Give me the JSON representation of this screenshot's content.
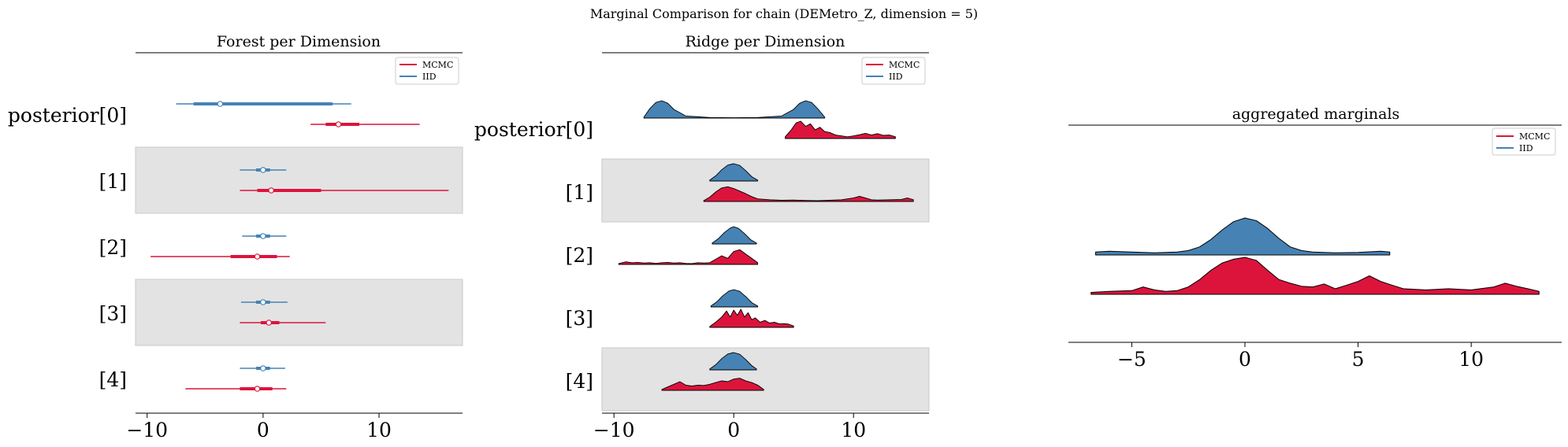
{
  "figure": {
    "suptitle": "Marginal Comparison for chain (DEMetro_Z, dimension = 5)"
  },
  "colors": {
    "mcmc": "#dc143c",
    "iid": "#4682b4",
    "band": "#e3e3e3"
  },
  "legend": {
    "mcmc": "MCMC",
    "iid": "IID"
  },
  "chart_data": [
    {
      "type": "forest",
      "title": "Forest per Dimension",
      "row_labels": [
        "posterior[0]",
        "[1]",
        "[2]",
        "[3]",
        "[4]"
      ],
      "xticks": [
        -10,
        0,
        10
      ],
      "xlim": [
        -11,
        17.2
      ],
      "legend_position": "upper right",
      "series": [
        {
          "name": "IID",
          "rows": [
            {
              "hdi": [
                -7.5,
                7.6
              ],
              "iqr": [
                -6.0,
                6.0
              ],
              "center": -3.7
            },
            {
              "hdi": [
                -2.0,
                2.0
              ],
              "iqr": [
                -0.6,
                0.6
              ],
              "center": 0.0
            },
            {
              "hdi": [
                -1.8,
                2.0
              ],
              "iqr": [
                -0.6,
                0.6
              ],
              "center": 0.0
            },
            {
              "hdi": [
                -1.9,
                2.1
              ],
              "iqr": [
                -0.6,
                0.6
              ],
              "center": 0.0
            },
            {
              "hdi": [
                -2.0,
                1.9
              ],
              "iqr": [
                -0.6,
                0.6
              ],
              "center": 0.0
            }
          ]
        },
        {
          "name": "MCMC",
          "rows": [
            {
              "hdi": [
                4.1,
                13.5
              ],
              "iqr": [
                5.4,
                8.3
              ],
              "center": 6.5
            },
            {
              "hdi": [
                -2.0,
                16.0
              ],
              "iqr": [
                -0.5,
                5.0
              ],
              "center": 0.7
            },
            {
              "hdi": [
                -9.7,
                2.3
              ],
              "iqr": [
                -2.8,
                1.2
              ],
              "center": -0.5
            },
            {
              "hdi": [
                -2.0,
                5.4
              ],
              "iqr": [
                -0.2,
                1.4
              ],
              "center": 0.5
            },
            {
              "hdi": [
                -6.7,
                2.0
              ],
              "iqr": [
                -2.0,
                0.8
              ],
              "center": -0.5
            }
          ]
        }
      ]
    },
    {
      "type": "ridge",
      "title": "Ridge per Dimension",
      "row_labels": [
        "posterior[0]",
        "[1]",
        "[2]",
        "[3]",
        "[4]"
      ],
      "xticks": [
        -10,
        0,
        10
      ],
      "xlim": [
        -11,
        16.3
      ],
      "legend_position": "upper right",
      "series": [
        {
          "name": "IID",
          "rows": [
            {
              "x": [
                -7.5,
                -7.0,
                -6.5,
                -6.0,
                -5.5,
                -5.0,
                -4.0,
                -2.0,
                0.0,
                2.0,
                4.0,
                5.0,
                5.5,
                6.0,
                6.5,
                7.0,
                7.6
              ],
              "y": [
                0.05,
                0.55,
                0.9,
                1.0,
                0.85,
                0.5,
                0.12,
                0.03,
                0.02,
                0.03,
                0.12,
                0.5,
                0.85,
                1.0,
                0.9,
                0.55,
                0.05
              ]
            },
            {
              "x": [
                -2.0,
                -1.5,
                -1.0,
                -0.5,
                0.0,
                0.5,
                1.0,
                1.5,
                2.0
              ],
              "y": [
                0.05,
                0.3,
                0.65,
                0.92,
                1.0,
                0.9,
                0.6,
                0.25,
                0.05
              ]
            },
            {
              "x": [
                -1.8,
                -1.3,
                -0.8,
                -0.3,
                0.0,
                0.4,
                0.9,
                1.4,
                1.9
              ],
              "y": [
                0.05,
                0.3,
                0.65,
                0.92,
                1.0,
                0.9,
                0.6,
                0.25,
                0.05
              ]
            },
            {
              "x": [
                -1.9,
                -1.4,
                -0.9,
                -0.4,
                0.0,
                0.5,
                1.0,
                1.5,
                2.0
              ],
              "y": [
                0.05,
                0.3,
                0.65,
                0.92,
                1.0,
                0.9,
                0.6,
                0.25,
                0.05
              ]
            },
            {
              "x": [
                -2.0,
                -1.5,
                -1.0,
                -0.5,
                0.0,
                0.5,
                1.0,
                1.5,
                1.9
              ],
              "y": [
                0.05,
                0.3,
                0.65,
                0.92,
                1.0,
                0.9,
                0.6,
                0.25,
                0.05
              ]
            }
          ]
        },
        {
          "name": "MCMC",
          "rows": [
            {
              "x": [
                4.3,
                4.8,
                5.2,
                5.6,
                6.0,
                6.4,
                6.8,
                7.2,
                7.6,
                8.0,
                8.5,
                9.0,
                9.5,
                10.0,
                10.5,
                11.0,
                11.5,
                12.0,
                12.5,
                13.0,
                13.5
              ],
              "y": [
                0.1,
                0.5,
                0.9,
                1.0,
                0.7,
                0.85,
                0.5,
                0.65,
                0.4,
                0.35,
                0.2,
                0.15,
                0.1,
                0.15,
                0.22,
                0.3,
                0.2,
                0.28,
                0.18,
                0.2,
                0.1
              ]
            },
            {
              "x": [
                -2.5,
                -2.0,
                -1.5,
                -1.0,
                -0.5,
                0.0,
                0.5,
                1.0,
                1.5,
                2.0,
                3.0,
                4.0,
                5.0,
                6.0,
                7.0,
                8.0,
                9.0,
                10.0,
                10.5,
                11.0,
                11.5,
                12.0,
                13.0,
                14.0,
                14.5,
                15.0
              ],
              "y": [
                0.05,
                0.25,
                0.55,
                0.78,
                0.85,
                0.75,
                0.6,
                0.45,
                0.28,
                0.15,
                0.1,
                0.07,
                0.08,
                0.06,
                0.05,
                0.07,
                0.1,
                0.2,
                0.3,
                0.2,
                0.1,
                0.08,
                0.1,
                0.12,
                0.2,
                0.1
              ]
            },
            {
              "x": [
                -9.6,
                -9.0,
                -8.5,
                -8.0,
                -7.5,
                -7.0,
                -6.5,
                -6.0,
                -5.5,
                -5.0,
                -4.5,
                -4.0,
                -3.5,
                -3.0,
                -2.5,
                -2.0,
                -1.5,
                -1.0,
                -0.5,
                0.0,
                0.5,
                1.0,
                1.5,
                2.0
              ],
              "y": [
                0.05,
                0.15,
                0.1,
                0.12,
                0.08,
                0.1,
                0.06,
                0.1,
                0.12,
                0.08,
                0.1,
                0.06,
                0.05,
                0.1,
                0.08,
                0.1,
                0.3,
                0.5,
                0.35,
                0.75,
                0.85,
                0.6,
                0.35,
                0.1
              ]
            },
            {
              "x": [
                -2.0,
                -1.5,
                -1.0,
                -0.6,
                -0.3,
                0.0,
                0.3,
                0.6,
                0.9,
                1.2,
                1.5,
                1.8,
                2.2,
                2.6,
                3.0,
                3.4,
                3.8,
                4.2,
                4.6,
                5.0
              ],
              "y": [
                0.05,
                0.3,
                0.6,
                0.95,
                0.6,
                1.0,
                0.7,
                1.05,
                0.6,
                0.85,
                0.45,
                0.55,
                0.3,
                0.4,
                0.25,
                0.3,
                0.2,
                0.22,
                0.18,
                0.08
              ]
            },
            {
              "x": [
                -6.0,
                -5.5,
                -5.0,
                -4.5,
                -4.0,
                -3.5,
                -3.0,
                -2.5,
                -2.0,
                -1.5,
                -1.0,
                -0.5,
                0.0,
                0.5,
                1.0,
                1.5,
                2.0,
                2.5
              ],
              "y": [
                0.05,
                0.2,
                0.35,
                0.5,
                0.3,
                0.25,
                0.3,
                0.28,
                0.35,
                0.45,
                0.55,
                0.5,
                0.65,
                0.7,
                0.55,
                0.45,
                0.3,
                0.05
              ]
            }
          ]
        }
      ]
    },
    {
      "type": "ridge",
      "title": "aggregated marginals",
      "xticks": [
        -5,
        0,
        5,
        10
      ],
      "xlim": [
        -7.8,
        14.0
      ],
      "legend_position": "upper right",
      "series": [
        {
          "name": "IID",
          "x": [
            -6.6,
            -6.0,
            -5.0,
            -4.0,
            -3.0,
            -2.5,
            -2.0,
            -1.5,
            -1.0,
            -0.5,
            0.0,
            0.5,
            1.0,
            1.5,
            2.0,
            2.5,
            3.0,
            4.0,
            5.0,
            6.0,
            6.4
          ],
          "y": [
            0.08,
            0.1,
            0.08,
            0.06,
            0.08,
            0.12,
            0.22,
            0.42,
            0.68,
            0.9,
            1.0,
            0.93,
            0.72,
            0.45,
            0.22,
            0.12,
            0.08,
            0.06,
            0.07,
            0.1,
            0.08
          ]
        },
        {
          "name": "MCMC",
          "x": [
            -6.8,
            -6.0,
            -5.0,
            -4.5,
            -4.0,
            -3.5,
            -3.0,
            -2.5,
            -2.0,
            -1.5,
            -1.0,
            -0.5,
            0.0,
            0.5,
            1.0,
            1.5,
            2.0,
            2.5,
            3.0,
            3.5,
            4.0,
            4.5,
            5.0,
            5.5,
            6.0,
            6.5,
            7.0,
            8.0,
            9.0,
            10.0,
            11.0,
            11.5,
            12.0,
            12.5,
            13.0
          ],
          "y": [
            0.05,
            0.08,
            0.1,
            0.2,
            0.12,
            0.08,
            0.1,
            0.2,
            0.4,
            0.65,
            0.85,
            0.95,
            1.0,
            0.92,
            0.65,
            0.4,
            0.3,
            0.22,
            0.2,
            0.28,
            0.15,
            0.25,
            0.35,
            0.5,
            0.35,
            0.25,
            0.15,
            0.12,
            0.15,
            0.12,
            0.2,
            0.3,
            0.22,
            0.15,
            0.08
          ]
        }
      ]
    }
  ]
}
